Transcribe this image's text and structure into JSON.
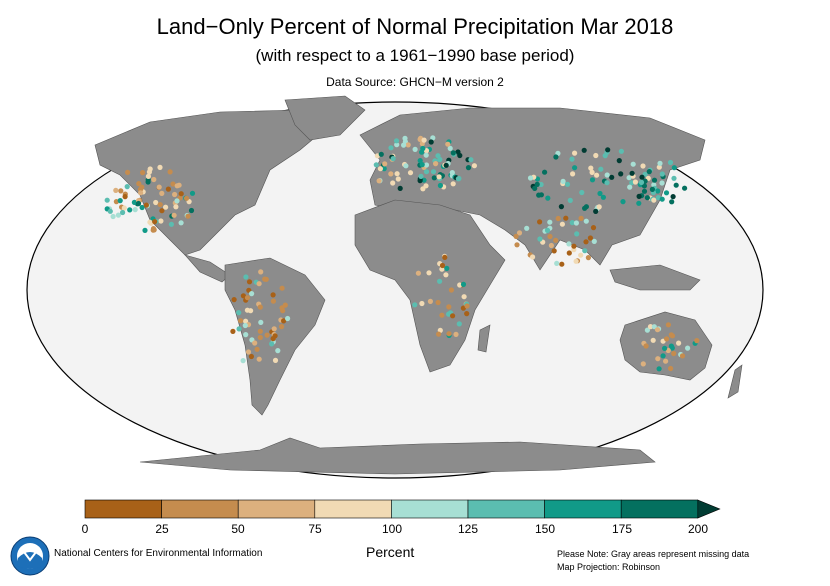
{
  "title": "Land−Only Percent of Normal Precipitation Mar 2018",
  "subtitle": "(with respect to a 1961−1990 base period)",
  "source": "Data Source: GHCN−M version 2",
  "colorbar": {
    "label": "Percent",
    "ticks": [
      "0",
      "25",
      "50",
      "75",
      "100",
      "125",
      "150",
      "175",
      "200"
    ],
    "bins": [
      {
        "range": "0-25",
        "color": "#a86118"
      },
      {
        "range": "25-50",
        "color": "#c58c4e"
      },
      {
        "range": "50-75",
        "color": "#dcb07e"
      },
      {
        "range": "75-100",
        "color": "#f1dab4"
      },
      {
        "range": "100-125",
        "color": "#a7dfd4"
      },
      {
        "range": "125-150",
        "color": "#5bbdb0"
      },
      {
        "range": "150-175",
        "color": "#119a88"
      },
      {
        "range": "175-200",
        "color": "#04705f"
      },
      {
        "range": ">200",
        "color": "#013c33"
      }
    ]
  },
  "colors": {
    "land_missing": "#8c8c8c",
    "ocean": "#f3f3f3"
  },
  "footer": {
    "agency": "National Centers for Environmental Information",
    "note": "Please Note: Gray areas represent missing data",
    "projection": "Map Projection: Robinson",
    "logo_icon": "noaa-logo-icon"
  }
}
